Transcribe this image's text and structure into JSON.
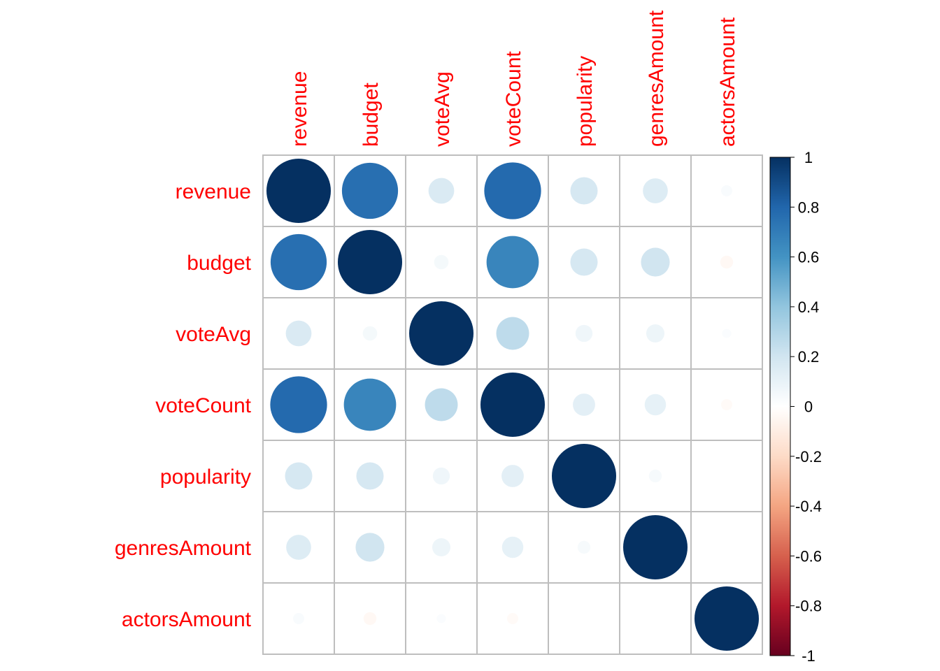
{
  "chart_data": {
    "type": "heatmap",
    "style": "correlation circles",
    "variables": [
      "revenue",
      "budget",
      "voteAvg",
      "voteCount",
      "popularity",
      "genresAmount",
      "actorsAmount"
    ],
    "matrix": [
      [
        1.0,
        0.76,
        0.16,
        0.78,
        0.18,
        0.15,
        0.03
      ],
      [
        0.76,
        1.0,
        0.05,
        0.66,
        0.18,
        0.2,
        -0.04
      ],
      [
        0.16,
        0.05,
        1.0,
        0.26,
        0.07,
        0.08,
        0.02
      ],
      [
        0.78,
        0.66,
        0.26,
        1.0,
        0.12,
        0.11,
        -0.03
      ],
      [
        0.18,
        0.18,
        0.07,
        0.12,
        1.0,
        0.04,
        0.0
      ],
      [
        0.15,
        0.2,
        0.08,
        0.11,
        0.04,
        1.0,
        0.0
      ],
      [
        0.03,
        -0.04,
        0.02,
        -0.03,
        0.0,
        0.0,
        1.0
      ]
    ],
    "colorbar": {
      "range": [
        -1,
        1
      ],
      "ticks": [
        "1",
        "0.8",
        "0.6",
        "0.4",
        "0.2",
        "0",
        "-0.2",
        "-0.4",
        "-0.6",
        "-0.8",
        "-1"
      ]
    },
    "colors": {
      "label": "#ff0000",
      "grid": "#bebebe",
      "palette": [
        "#67001F",
        "#B2182B",
        "#D6604D",
        "#F4A582",
        "#FDDBC7",
        "#FFFFFF",
        "#D1E5F0",
        "#92C5DE",
        "#4393C3",
        "#2166AC",
        "#053061"
      ]
    }
  }
}
